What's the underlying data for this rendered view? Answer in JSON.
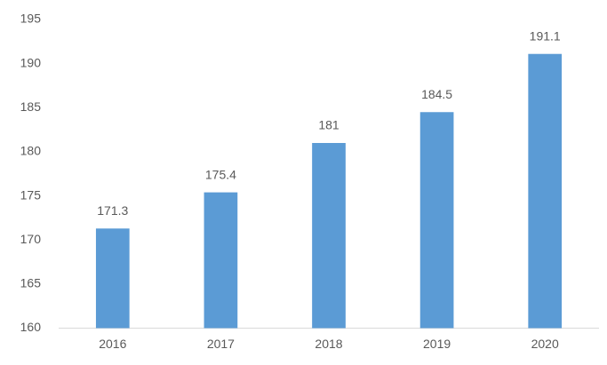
{
  "chart_data": {
    "type": "bar",
    "categories": [
      "2016",
      "2017",
      "2018",
      "2019",
      "2020"
    ],
    "values": [
      171.3,
      175.4,
      181,
      184.5,
      191.1
    ],
    "color": "#5b9bd5",
    "ylim": [
      160,
      195
    ],
    "yticks": [
      160,
      165,
      170,
      175,
      180,
      185,
      190,
      195
    ],
    "grid": false
  }
}
